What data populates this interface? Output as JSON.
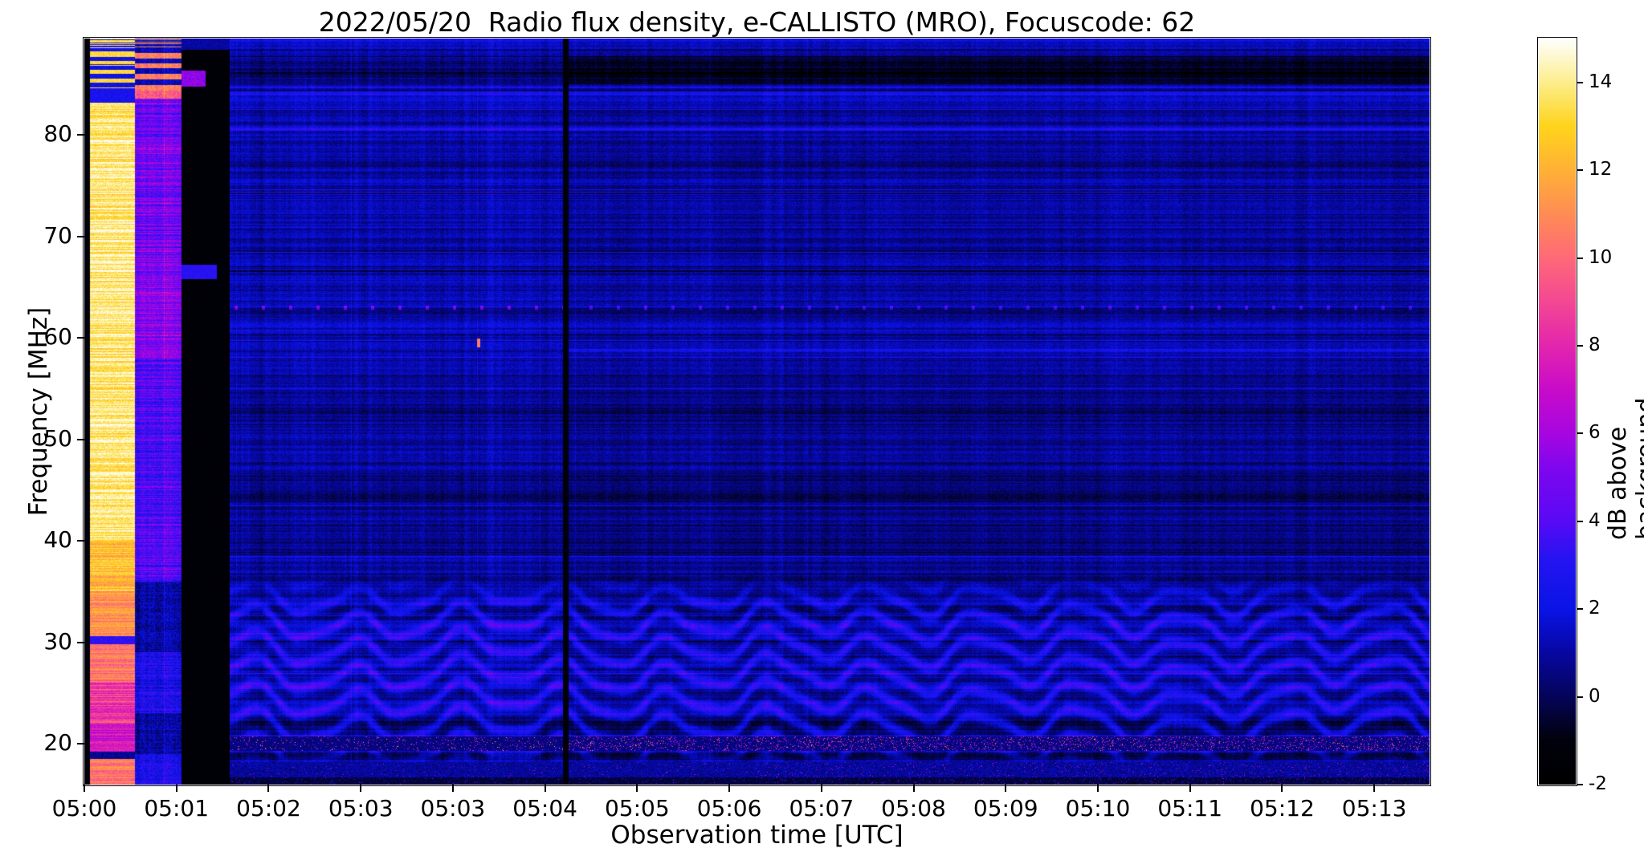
{
  "chart_data": {
    "type": "heatmap",
    "title": "2022/05/20  Radio flux density, e-CALLISTO (MRO), Focuscode: 62",
    "xlabel": "Observation time [UTC]",
    "ylabel": "Frequency [MHz]",
    "x_ticks": [
      "05:00",
      "05:01",
      "05:02",
      "05:03",
      "05:03",
      "05:04",
      "05:05",
      "05:06",
      "05:07",
      "05:08",
      "05:09",
      "05:10",
      "05:11",
      "05:12",
      "05:13"
    ],
    "x_range": [
      "05:00:00",
      "05:14:00"
    ],
    "y_ticks": [
      20,
      30,
      40,
      50,
      60,
      70,
      80
    ],
    "y_range_mhz": [
      16.0,
      89.5
    ],
    "value_range_db": [
      -2,
      15
    ],
    "grid": false,
    "colorbar": {
      "label": "dB above background",
      "ticks": [
        -2,
        0,
        2,
        4,
        6,
        8,
        10,
        12,
        14
      ],
      "range_db": [
        -2,
        15
      ],
      "colormap_name": "gnuplot2-like (black-blue-violet-magenta-pink-orange-yellow-white)",
      "colormap_stops": [
        [
          0.0,
          "#000000"
        ],
        [
          0.06,
          "#02020e"
        ],
        [
          0.12,
          "#05055e"
        ],
        [
          0.18,
          "#0808a8"
        ],
        [
          0.235,
          "#0a14e6"
        ],
        [
          0.3,
          "#2414f2"
        ],
        [
          0.353,
          "#5a0af5"
        ],
        [
          0.42,
          "#7d06f0"
        ],
        [
          0.471,
          "#a806e0"
        ],
        [
          0.53,
          "#c90cc9"
        ],
        [
          0.588,
          "#e426ae"
        ],
        [
          0.65,
          "#f44a92"
        ],
        [
          0.706,
          "#ff6a78"
        ],
        [
          0.765,
          "#ff8d55"
        ],
        [
          0.824,
          "#ffb136"
        ],
        [
          0.882,
          "#ffd41c"
        ],
        [
          0.941,
          "#fdee8d"
        ],
        [
          1.0,
          "#ffffff"
        ]
      ]
    },
    "features": {
      "description": "Solar radio spectrogram, quiet dark-blue background (~0.5-1.5 dB) with horizontal channel striping; bright calibration column at start; black data gap near 05:01; black vertical break just after 05:04; undulating ionospheric interference fringes below ~36 MHz; speckled bright RFI row near 20 MHz; dotted RFI row near 63 MHz.",
      "background_db": 0.85,
      "calibration_band": {
        "t_range": [
          0.004,
          0.0375
        ],
        "db_above_38mhz": 13.8,
        "db_below_38mhz": 9.0
      },
      "mixed_band": {
        "t_range": [
          0.0375,
          0.072
        ],
        "db": 4.6
      },
      "data_gap_black": {
        "t_range": [
          0.072,
          0.108
        ],
        "db": -1.7
      },
      "black_vertical_line_t": 0.358,
      "top_dark_band_mhz": [
        85.0,
        87.8
      ],
      "wave_interference": {
        "mhz_range": [
          17.8,
          36.8
        ],
        "stripe_spacing_mhz": 2.55,
        "undulations": 13,
        "amp_db": 1.8
      },
      "speckled_row_mhz": [
        19.25,
        20.7
      ],
      "dark_row_mhz": [
        [
          18.45,
          19.05
        ],
        [
          21.3,
          22.6
        ]
      ],
      "dotted_row_mhz": 63.0,
      "bright_rows_mhz": [
        58.8,
        80.6,
        84.1
      ],
      "hot_spot": {
        "t": 0.293,
        "mhz": 59.5,
        "db": 10.5
      }
    }
  }
}
